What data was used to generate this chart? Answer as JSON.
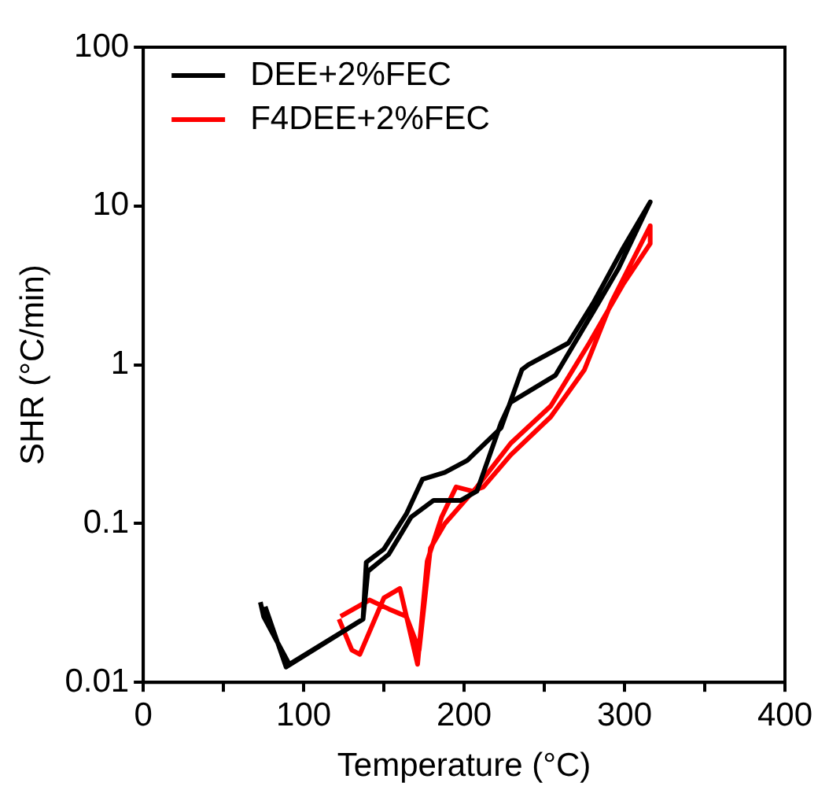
{
  "chart_data": {
    "type": "line",
    "xlabel": "Temperature (°C)",
    "ylabel": "SHR (°C/min)",
    "log": "y",
    "grid": false,
    "legend": "top left",
    "marker": "none",
    "line_style": "solid",
    "xlim": [
      0,
      400
    ],
    "xticks": [
      0,
      {
        "value": 50,
        "label": null
      },
      100,
      {
        "value": 150,
        "label": null
      },
      200,
      {
        "value": 250,
        "label": null
      },
      300,
      {
        "value": 350,
        "label": null
      },
      400
    ],
    "ylim": [
      0.01,
      100
    ],
    "yticks": [
      0.01,
      0.1,
      1,
      10,
      100
    ],
    "series": [
      {
        "name": "DEE+2%FEC",
        "color": "#000000",
        "x": [
          73,
          75,
          91,
          137,
          139,
          150,
          164,
          174,
          188,
          202,
          223,
          236,
          240,
          265,
          281,
          299,
          316,
          296,
          281,
          257,
          229,
          223,
          208,
          198,
          181,
          167,
          153,
          140,
          137,
          89,
          76
        ],
        "values": [
          0.032,
          0.026,
          0.013,
          0.025,
          0.057,
          0.069,
          0.115,
          0.19,
          0.21,
          0.25,
          0.4,
          0.93,
          1.0,
          1.37,
          2.5,
          5.4,
          10.6,
          4.0,
          2.2,
          0.86,
          0.58,
          0.43,
          0.16,
          0.14,
          0.14,
          0.11,
          0.064,
          0.05,
          0.025,
          0.0125,
          0.03
        ]
      },
      {
        "name": "F4DEE+2%FEC",
        "color": "#ff0000",
        "x": [
          122,
          130,
          135,
          150,
          160,
          171,
          177,
          186,
          195,
          205,
          212,
          229,
          254,
          275,
          292,
          316,
          316,
          299,
          278,
          254,
          229,
          208,
          188,
          179,
          172,
          164,
          153,
          141,
          123
        ],
        "values": [
          0.025,
          0.016,
          0.015,
          0.034,
          0.039,
          0.013,
          0.058,
          0.11,
          0.17,
          0.16,
          0.17,
          0.27,
          0.47,
          0.93,
          2.5,
          7.5,
          5.8,
          3.2,
          1.37,
          0.55,
          0.32,
          0.17,
          0.1,
          0.07,
          0.016,
          0.026,
          0.029,
          0.033,
          0.026
        ]
      }
    ]
  }
}
